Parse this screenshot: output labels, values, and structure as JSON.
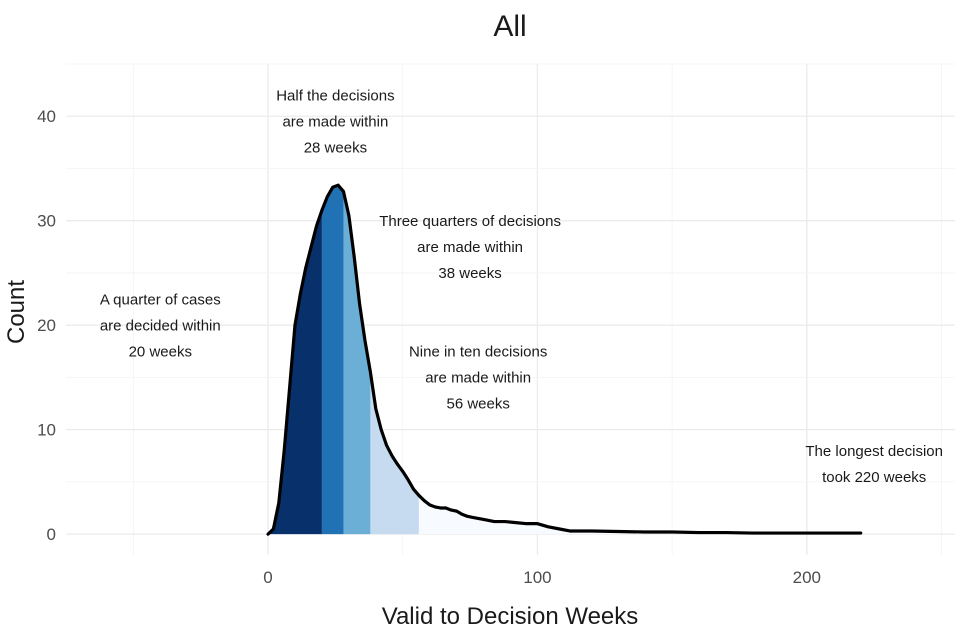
{
  "chart_data": {
    "type": "area",
    "title": "All",
    "xlabel": "Valid to Decision Weeks",
    "ylabel": "Count",
    "xlim": [
      -75,
      255
    ],
    "ylim": [
      -2,
      45
    ],
    "x_ticks": [
      0,
      100,
      200
    ],
    "y_ticks": [
      0,
      10,
      20,
      30,
      40
    ],
    "grid": true,
    "density": {
      "x": [
        0,
        2,
        4,
        6,
        8,
        10,
        12,
        14,
        16,
        18,
        20,
        22,
        24,
        26,
        28,
        30,
        32,
        34,
        36,
        38,
        40,
        42,
        44,
        46,
        48,
        50,
        52,
        54,
        56,
        58,
        60,
        62,
        64,
        66,
        68,
        70,
        72,
        74,
        76,
        78,
        80,
        84,
        88,
        92,
        96,
        100,
        104,
        108,
        112,
        116,
        120,
        130,
        140,
        150,
        160,
        170,
        180,
        190,
        200,
        210,
        220
      ],
      "y": [
        0,
        0.5,
        3,
        8,
        14,
        20,
        23,
        25.5,
        27.5,
        29.5,
        31,
        32.3,
        33.2,
        33.4,
        32.8,
        30.5,
        26.5,
        22,
        18.5,
        15.5,
        12,
        10,
        8.5,
        7.5,
        6.7,
        6,
        5.2,
        4.3,
        3.7,
        3.2,
        2.8,
        2.6,
        2.5,
        2.5,
        2.3,
        2.2,
        1.9,
        1.7,
        1.6,
        1.5,
        1.4,
        1.2,
        1.2,
        1.1,
        1.0,
        1.0,
        0.7,
        0.5,
        0.3,
        0.3,
        0.3,
        0.25,
        0.2,
        0.2,
        0.15,
        0.15,
        0.1,
        0.1,
        0.1,
        0.1,
        0.1
      ]
    },
    "bands": [
      {
        "from": 0,
        "to": 20,
        "color": "#08306b"
      },
      {
        "from": 20,
        "to": 28,
        "color": "#2171b5"
      },
      {
        "from": 28,
        "to": 38,
        "color": "#6baed6"
      },
      {
        "from": 38,
        "to": 56,
        "color": "#c6dbef"
      },
      {
        "from": 56,
        "to": 220,
        "color": "#f7fbff"
      }
    ],
    "annotations": [
      {
        "lines": [
          "A quarter of cases",
          "are decided within",
          "20 weeks"
        ],
        "x": -40,
        "y": 22
      },
      {
        "lines": [
          "Half the decisions",
          "are made within",
          "28 weeks"
        ],
        "x": 25,
        "y": 41.5
      },
      {
        "lines": [
          "Three quarters of decisions",
          "are made within",
          "38 weeks"
        ],
        "x": 75,
        "y": 29.5
      },
      {
        "lines": [
          "Nine in ten decisions",
          "are made within",
          "56 weeks"
        ],
        "x": 78,
        "y": 17
      },
      {
        "lines": [
          "The longest decision",
          "took 220 weeks"
        ],
        "x": 225,
        "y": 7.5
      }
    ]
  }
}
